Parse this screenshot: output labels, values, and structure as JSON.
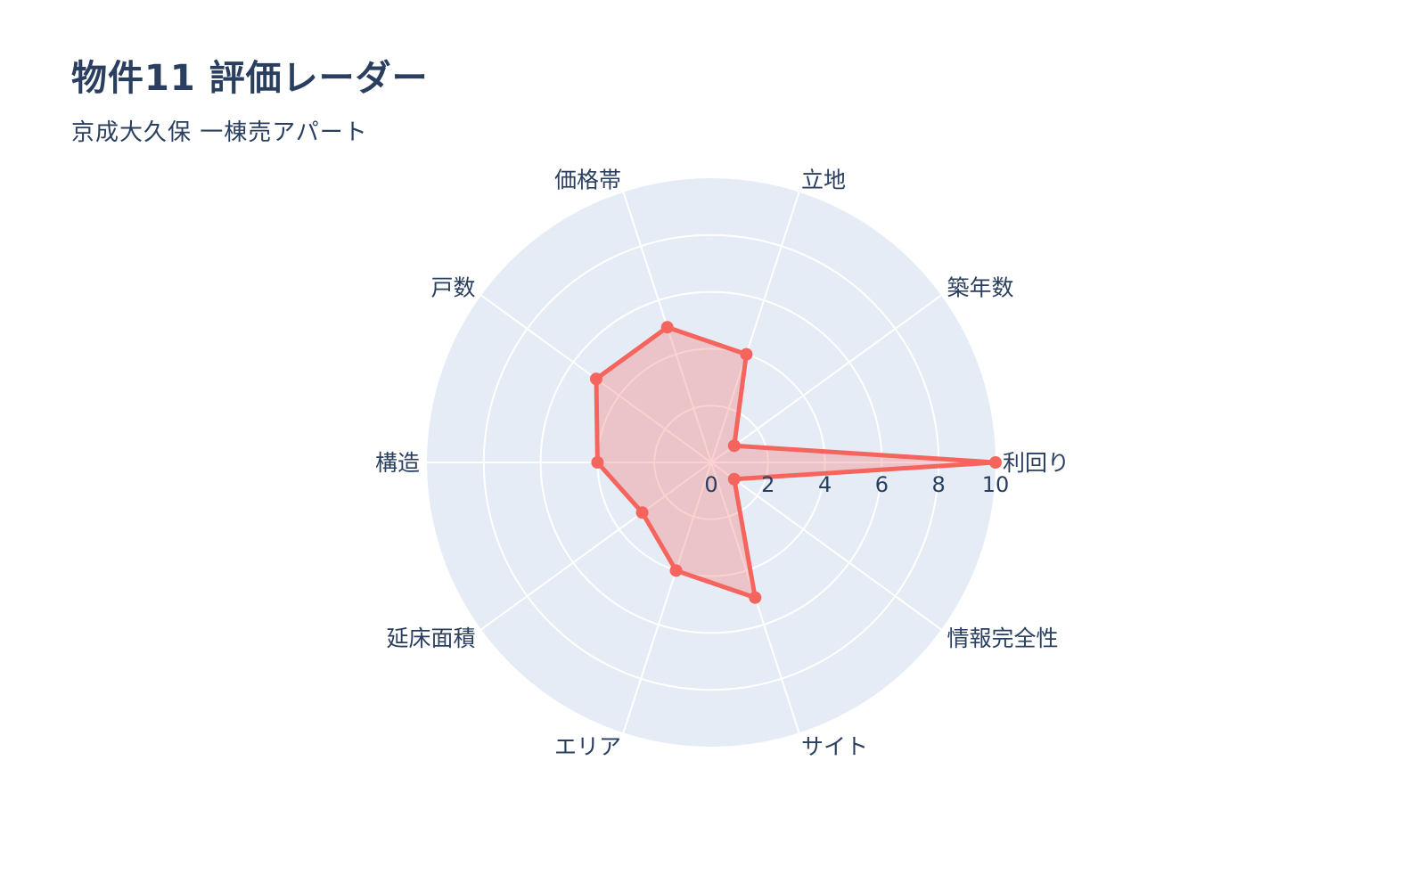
{
  "page": {
    "title": "物件11 評価レーダー",
    "subtitle": "京成大久保 一棟売アパート"
  },
  "chart_data": {
    "type": "radar",
    "title": "物件11 評価レーダー",
    "subtitle": "京成大久保 一棟売アパート",
    "categories": [
      "利回り",
      "築年数",
      "立地",
      "価格帯",
      "戸数",
      "構造",
      "延床面積",
      "エリア",
      "サイト",
      "情報完全性"
    ],
    "values": [
      10,
      1,
      4,
      5,
      5,
      4,
      3,
      4,
      5,
      1
    ],
    "radial_range": [
      0,
      10
    ],
    "radial_ticks": [
      0,
      2,
      4,
      6,
      8,
      10
    ],
    "start_angle_deg": 0,
    "direction": "counterclockwise",
    "grid": true,
    "legend": "none",
    "colors": {
      "series_line": "#f5655e",
      "series_fill": "rgba(246,103,97,0.30)",
      "polar_background": "#e5ecf6",
      "grid_line": "#ffffff",
      "text": "#2a3f5f"
    }
  }
}
